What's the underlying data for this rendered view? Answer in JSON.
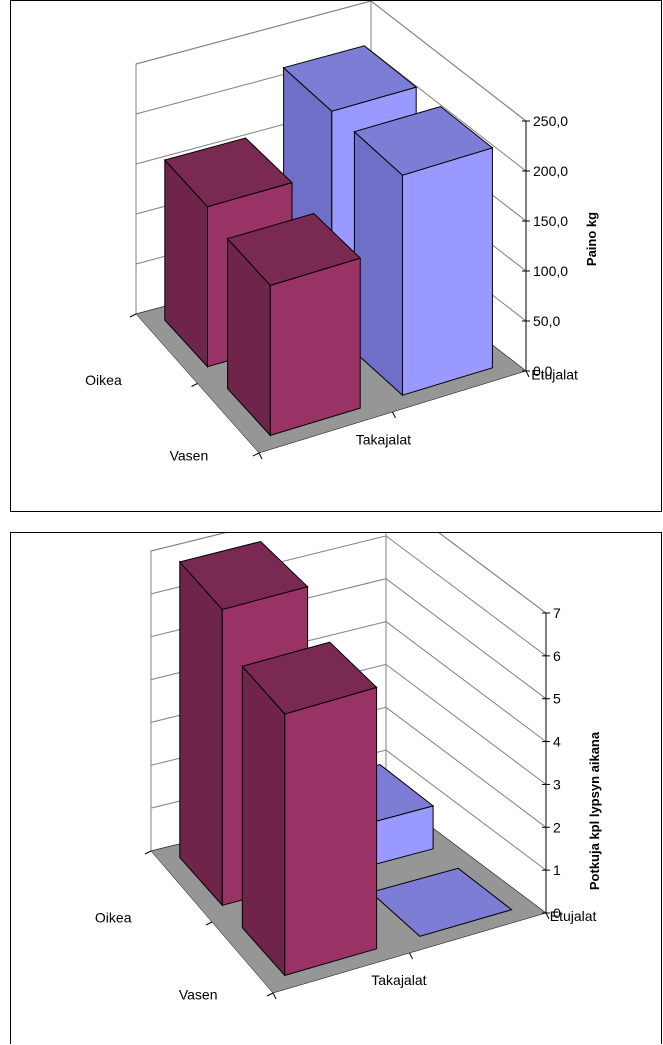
{
  "colors": {
    "floor": "#969696",
    "wall_line": "#808080",
    "red_front": "#993366",
    "red_side": "#6f2449",
    "red_top": "#7a2a52",
    "blue_front": "#9999ff",
    "blue_side": "#6f6fc7",
    "blue_top": "#7d7dd6"
  },
  "chart_data": [
    {
      "type": "bar3d",
      "ylabel": "Paino kg",
      "ylim": [
        0,
        250
      ],
      "ytick_labels": [
        "0,0",
        "50,0",
        "100,0",
        "150,0",
        "200,0",
        "250,0"
      ],
      "categories": [
        "Takajalat",
        "Etujalat"
      ],
      "series_axis": [
        "Oikea",
        "Vasen"
      ],
      "values": [
        {
          "category": "Takajalat",
          "series": "Oikea",
          "value": 160
        },
        {
          "category": "Takajalat",
          "series": "Vasen",
          "value": 150
        },
        {
          "category": "Etujalat",
          "series": "Oikea",
          "value": 220
        },
        {
          "category": "Etujalat",
          "series": "Vasen",
          "value": 220
        }
      ]
    },
    {
      "type": "bar3d",
      "ylabel": "Potkuja kpl lypsyn aikana",
      "ylim": [
        0,
        7
      ],
      "ytick_labels": [
        "0",
        "1",
        "2",
        "3",
        "4",
        "5",
        "6",
        "7"
      ],
      "categories": [
        "Takajalat",
        "Etujalat"
      ],
      "series_axis": [
        "Oikea",
        "Vasen"
      ],
      "values": [
        {
          "category": "Takajalat",
          "series": "Oikea",
          "value": 6.9
        },
        {
          "category": "Takajalat",
          "series": "Vasen",
          "value": 6.1
        },
        {
          "category": "Etujalat",
          "series": "Oikea",
          "value": 1.0
        },
        {
          "category": "Etujalat",
          "series": "Vasen",
          "value": 0
        }
      ]
    }
  ]
}
